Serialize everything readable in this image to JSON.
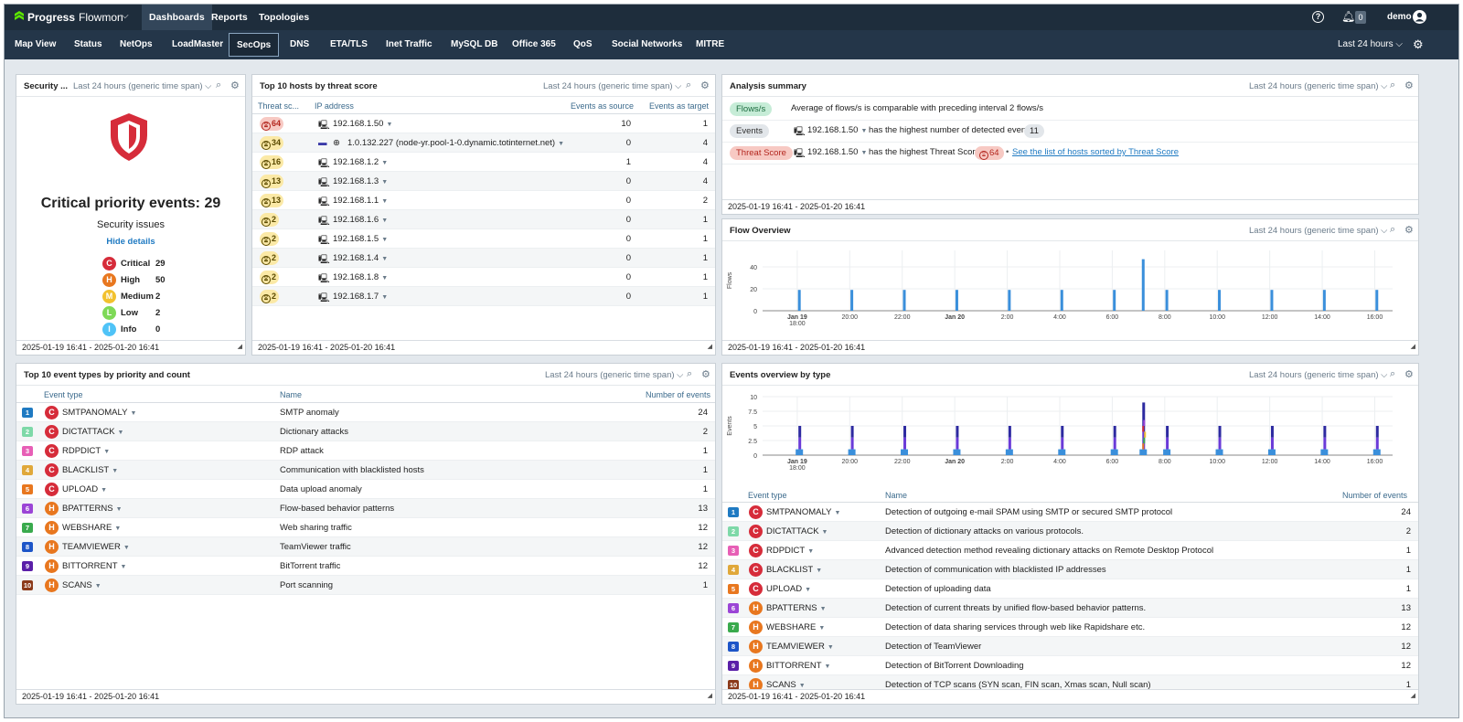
{
  "app": {
    "brand": "Progress",
    "product": "Flowmon",
    "user": "demo",
    "notification_count": "0"
  },
  "topnav": [
    "Dashboards",
    "Reports",
    "Topologies"
  ],
  "tabs": [
    "Map View",
    "Status",
    "NetOps",
    "LoadMaster",
    "SecOps",
    "DNS",
    "ETA/TLS",
    "Inet Traffic",
    "MySQL DB",
    "Office 365",
    "QoS",
    "Social Networks",
    "MITRE"
  ],
  "global_time": "Last 24 hours",
  "panel_time": "Last 24 hours (generic time span)",
  "footer_range": "2025-01-19 16:41 - 2025-01-20 16:41",
  "colors": {
    "critical": "#d62c3a",
    "high": "#e8771f",
    "medium": "#f2c12e",
    "low": "#7ed957",
    "info": "#4fc3f7",
    "accent": "#1f7ac2"
  },
  "security": {
    "title": "Security ...",
    "headline": "Critical priority events: 29",
    "subtitle": "Security issues",
    "details_link": "Hide details",
    "levels": [
      {
        "letter": "C",
        "name": "Critical",
        "count": "29",
        "color": "#d62c3a"
      },
      {
        "letter": "H",
        "name": "High",
        "count": "50",
        "color": "#e8771f"
      },
      {
        "letter": "M",
        "name": "Medium",
        "count": "2",
        "color": "#f2c12e"
      },
      {
        "letter": "L",
        "name": "Low",
        "count": "2",
        "color": "#7ed957"
      },
      {
        "letter": "I",
        "name": "Info",
        "count": "0",
        "color": "#4fc3f7"
      }
    ]
  },
  "top_hosts": {
    "title": "Top 10 hosts by threat score",
    "columns": [
      "Threat sc...",
      "IP address",
      "Events as source",
      "Events as target"
    ],
    "rows": [
      {
        "score": "64",
        "ip": "192.168.1.50",
        "src": "10",
        "tgt": "1"
      },
      {
        "score": "34",
        "ip": "1.0.132.227 (node-yr.pool-1-0.dynamic.totinternet.net)",
        "src": "0",
        "tgt": "4"
      },
      {
        "score": "16",
        "ip": "192.168.1.2",
        "src": "1",
        "tgt": "4"
      },
      {
        "score": "13",
        "ip": "192.168.1.3",
        "src": "0",
        "tgt": "4"
      },
      {
        "score": "13",
        "ip": "192.168.1.1",
        "src": "0",
        "tgt": "2"
      },
      {
        "score": "2",
        "ip": "192.168.1.6",
        "src": "0",
        "tgt": "1"
      },
      {
        "score": "2",
        "ip": "192.168.1.5",
        "src": "0",
        "tgt": "1"
      },
      {
        "score": "2",
        "ip": "192.168.1.4",
        "src": "0",
        "tgt": "1"
      },
      {
        "score": "2",
        "ip": "192.168.1.8",
        "src": "0",
        "tgt": "1"
      },
      {
        "score": "2",
        "ip": "192.168.1.7",
        "src": "0",
        "tgt": "1"
      }
    ]
  },
  "analysis": {
    "title": "Analysis summary",
    "rows": [
      {
        "tag": "Flows/s",
        "text": "Average of flows/s is comparable with preceding interval 2 flows/s"
      },
      {
        "tag": "Events",
        "host": "192.168.1.50",
        "text": "has the highest number of detected events",
        "badge": "11"
      },
      {
        "tag": "Threat Score",
        "host": "192.168.1.50",
        "text": "has the highest Threat Score",
        "badge": "64",
        "link": "See the list of hosts sorted by Threat Score"
      }
    ]
  },
  "flow_overview": {
    "title": "Flow Overview"
  },
  "events_overview": {
    "title": "Events overview by type",
    "columns": [
      "Event type",
      "Name",
      "Number of events"
    ],
    "rows": [
      {
        "n": "1",
        "p": "C",
        "type": "SMTPANOMALY",
        "desc": "Detection of outgoing e-mail SPAM using SMTP or secured SMTP protocol",
        "count": "24"
      },
      {
        "n": "2",
        "p": "C",
        "type": "DICTATTACK",
        "desc": "Detection of dictionary attacks on various protocols.",
        "count": "2"
      },
      {
        "n": "3",
        "p": "C",
        "type": "RDPDICT",
        "desc": "Advanced detection method revealing dictionary attacks on Remote Desktop Protocol",
        "count": "1"
      },
      {
        "n": "4",
        "p": "C",
        "type": "BLACKLIST",
        "desc": "Detection of communication with blacklisted IP addresses",
        "count": "1"
      },
      {
        "n": "5",
        "p": "C",
        "type": "UPLOAD",
        "desc": "Detection of uploading data",
        "count": "1"
      },
      {
        "n": "6",
        "p": "H",
        "type": "BPATTERNS",
        "desc": "Detection of current threats by unified flow-based behavior patterns.",
        "count": "13"
      },
      {
        "n": "7",
        "p": "H",
        "type": "WEBSHARE",
        "desc": "Detection of data sharing services through web like Rapidshare etc.",
        "count": "12"
      },
      {
        "n": "8",
        "p": "H",
        "type": "TEAMVIEWER",
        "desc": "Detection of TeamViewer",
        "count": "12"
      },
      {
        "n": "9",
        "p": "H",
        "type": "BITTORRENT",
        "desc": "Detection of BitTorrent Downloading",
        "count": "12"
      },
      {
        "n": "10",
        "p": "H",
        "type": "SCANS",
        "desc": "Detection of TCP scans (SYN scan, FIN scan, Xmas scan, Null scan)",
        "count": "1"
      }
    ]
  },
  "top_events": {
    "title": "Top 10 event types by priority and count",
    "columns": [
      "Event type",
      "Name",
      "Number of events"
    ],
    "rows": [
      {
        "n": "1",
        "p": "C",
        "type": "SMTPANOMALY",
        "desc": "SMTP anomaly",
        "count": "24"
      },
      {
        "n": "2",
        "p": "C",
        "type": "DICTATTACK",
        "desc": "Dictionary attacks",
        "count": "2"
      },
      {
        "n": "3",
        "p": "C",
        "type": "RDPDICT",
        "desc": "RDP attack",
        "count": "1"
      },
      {
        "n": "4",
        "p": "C",
        "type": "BLACKLIST",
        "desc": "Communication with blacklisted hosts",
        "count": "1"
      },
      {
        "n": "5",
        "p": "C",
        "type": "UPLOAD",
        "desc": "Data upload anomaly",
        "count": "1"
      },
      {
        "n": "6",
        "p": "H",
        "type": "BPATTERNS",
        "desc": "Flow-based behavior patterns",
        "count": "13"
      },
      {
        "n": "7",
        "p": "H",
        "type": "WEBSHARE",
        "desc": "Web sharing traffic",
        "count": "12"
      },
      {
        "n": "8",
        "p": "H",
        "type": "TEAMVIEWER",
        "desc": "TeamViewer traffic",
        "count": "12"
      },
      {
        "n": "9",
        "p": "H",
        "type": "BITTORRENT",
        "desc": "BitTorrent traffic",
        "count": "12"
      },
      {
        "n": "10",
        "p": "H",
        "type": "SCANS",
        "desc": "Port scanning",
        "count": "1"
      }
    ]
  },
  "num_colors": [
    "#1f7ac2",
    "#7ed9a8",
    "#e75fb6",
    "#e0a83a",
    "#e8771f",
    "#9b45d6",
    "#3aaa4d",
    "#1d55c8",
    "#5a1fa8",
    "#8b3a1a"
  ],
  "chart_data": [
    {
      "type": "bar",
      "title": "Flow Overview",
      "ylabel": "Flows",
      "ylim": [
        0,
        55
      ],
      "yticks": [
        0,
        20,
        40
      ],
      "xticks": [
        "Jan 19\n18:00",
        "20:00",
        "22:00",
        "Jan 20",
        "2:00",
        "4:00",
        "6:00",
        "8:00",
        "10:00",
        "12:00",
        "14:00",
        "16:00"
      ],
      "x_hours_since_1641": [
        1.4,
        3.4,
        5.4,
        7.4,
        9.4,
        11.4,
        13.4,
        14.5,
        15.4,
        17.4,
        19.4,
        21.4,
        23.4
      ],
      "values": [
        19,
        19,
        19,
        19,
        19,
        19,
        19,
        47,
        19,
        19,
        19,
        19,
        19
      ]
    },
    {
      "type": "bar",
      "title": "Events overview by type",
      "ylabel": "Events",
      "ylim": [
        0,
        10
      ],
      "yticks": [
        0,
        2.5,
        5,
        7.5,
        10
      ],
      "xticks": [
        "Jan 19\n18:00",
        "20:00",
        "22:00",
        "Jan 20",
        "2:00",
        "4:00",
        "6:00",
        "8:00",
        "10:00",
        "12:00",
        "14:00",
        "16:00"
      ],
      "x_hours_since_1641": [
        1.4,
        3.4,
        5.4,
        7.4,
        9.4,
        11.4,
        13.4,
        14.5,
        15.4,
        17.4,
        19.4,
        21.4,
        23.4
      ],
      "series": [
        {
          "values": [
            1,
            1,
            1,
            1,
            1,
            1,
            1,
            1,
            1,
            1,
            1,
            1,
            1
          ]
        },
        {
          "values": [
            3,
            3,
            3,
            3,
            3,
            3,
            3,
            4,
            3,
            3,
            3,
            3,
            3
          ]
        },
        {
          "values": [
            5,
            5,
            5,
            5,
            5,
            5,
            5,
            9,
            5,
            5,
            5,
            5,
            5
          ]
        }
      ]
    }
  ]
}
